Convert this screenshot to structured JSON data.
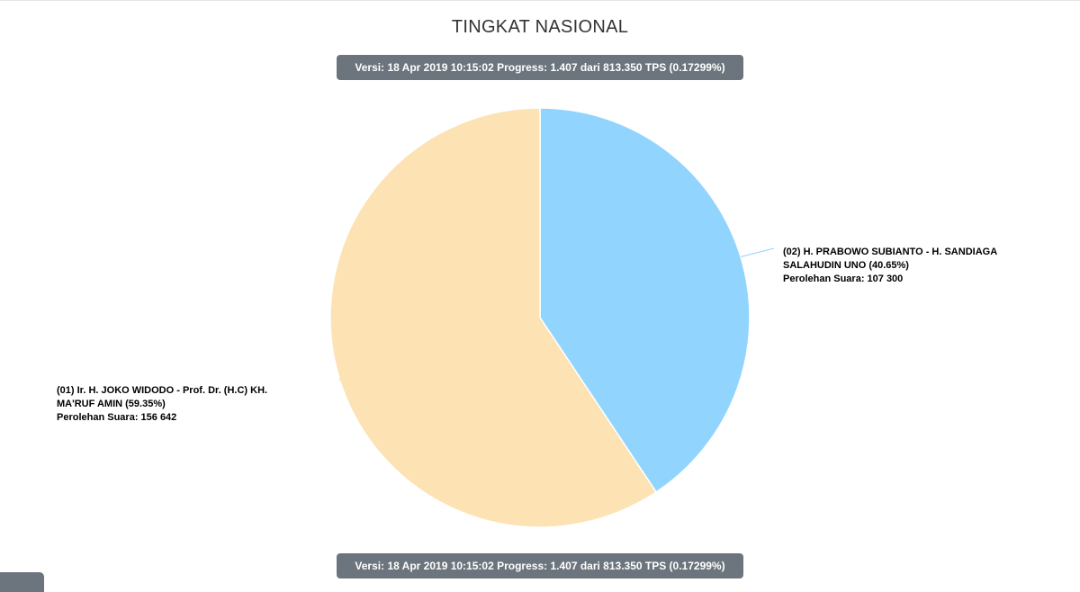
{
  "page": {
    "title": "TINGKAT NASIONAL"
  },
  "version_bar": {
    "versi_label": "Versi:",
    "versi_value": "18 Apr 2019 10:15:02",
    "progress_label": "Progress:",
    "progress_value": "1.407 dari 813.350 TPS (0.17299%)"
  },
  "chart_data": {
    "type": "pie",
    "title": "TINGKAT NASIONAL",
    "vote_label": "Perolehan Suara:",
    "slices": [
      {
        "name": "(02) H. PRABOWO SUBIANTO - H. SANDIAGA SALAHUDIN UNO",
        "label_line1": "(02) H. PRABOWO SUBIANTO - H. SANDIAGA",
        "label_line2": "SALAHUDIN UNO (40.65%)",
        "percent": 40.65,
        "votes": 107300,
        "votes_text": "107 300",
        "color": "#91d5ff",
        "legend_side": "right"
      },
      {
        "name": "(01) Ir. H. JOKO WIDODO - Prof. Dr. (H.C) KH. MA'RUF AMIN",
        "label_line1": "(01) Ir. H. JOKO WIDODO - Prof. Dr. (H.C) KH.",
        "label_line2": "MA'RUF AMIN (59.35%)",
        "percent": 59.35,
        "votes": 156642,
        "votes_text": "156 642",
        "color": "#fde2b3",
        "legend_side": "left"
      }
    ]
  }
}
